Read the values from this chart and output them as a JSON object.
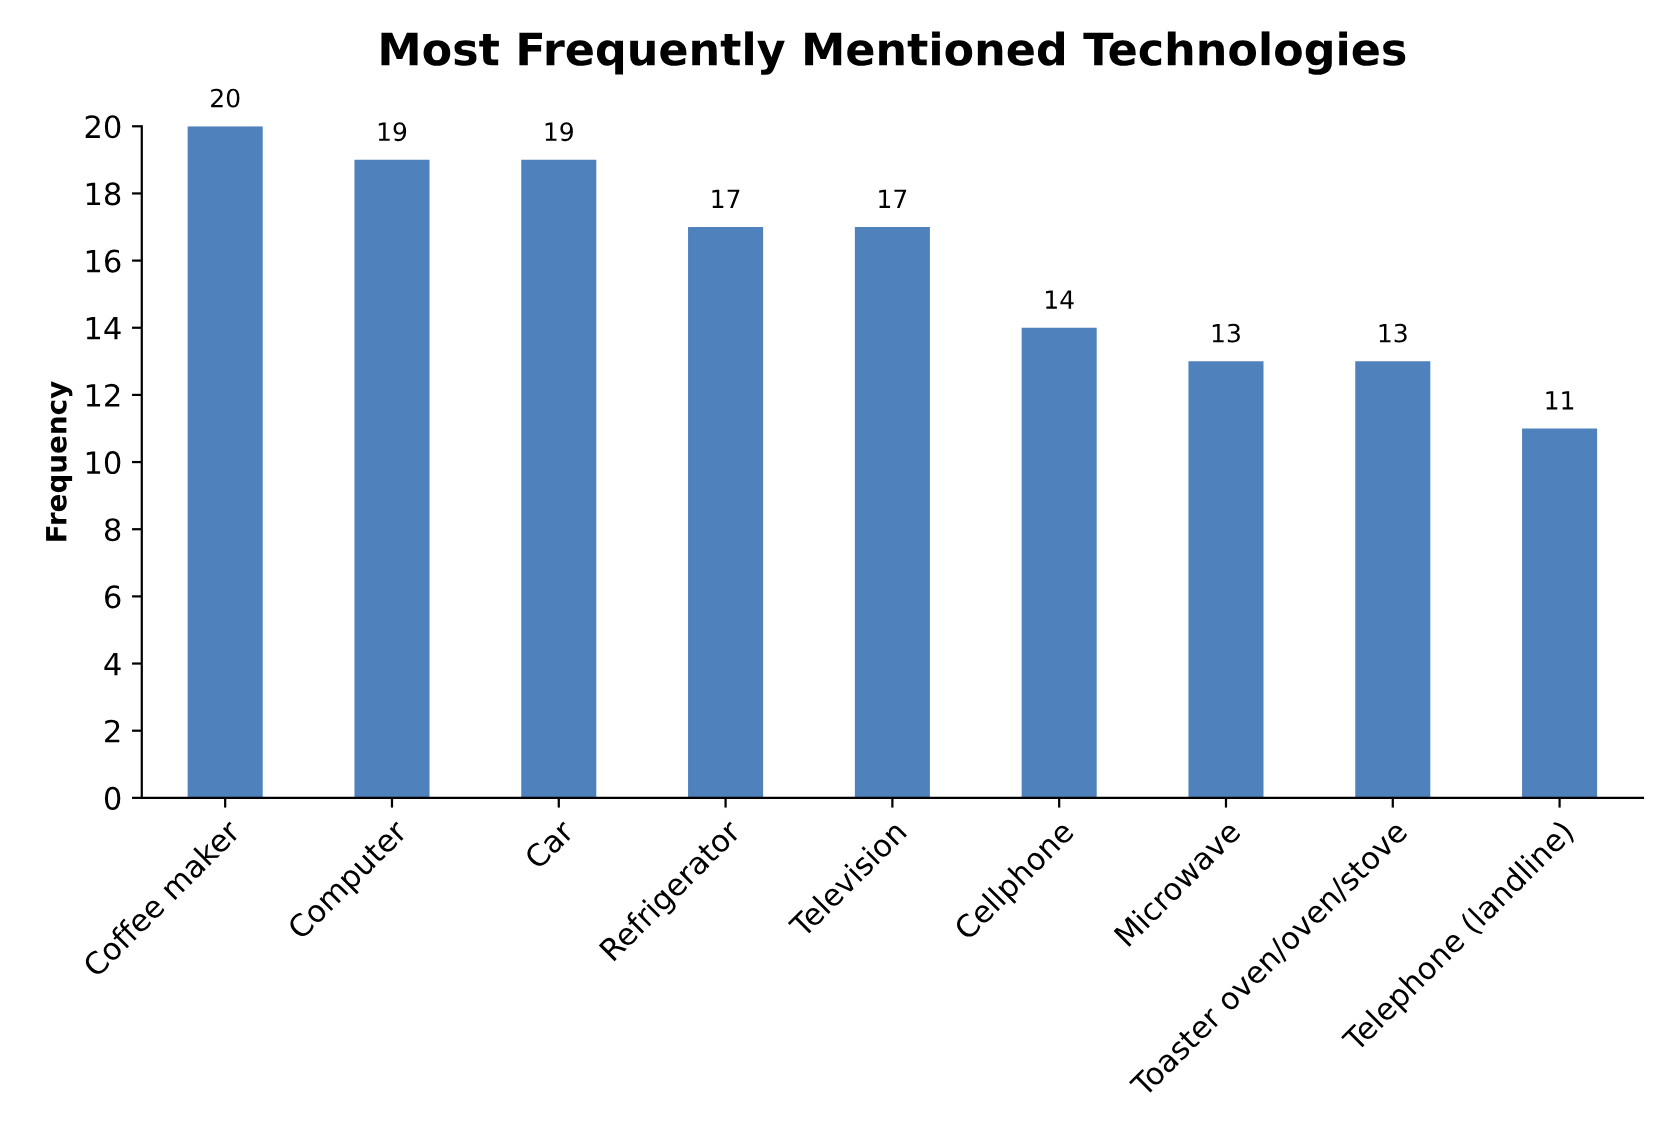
{
  "chart_data": {
    "type": "bar",
    "title": "Most Frequently Mentioned Technologies",
    "ylabel": "Frequency",
    "categories": [
      "Coffee maker",
      "Computer",
      "Car",
      "Refrigerator",
      "Television",
      "Cellphone",
      "Microwave",
      "Toaster oven/oven/stove",
      "Telephone (landline)"
    ],
    "values": [
      20,
      19,
      19,
      17,
      17,
      14,
      13,
      13,
      11
    ],
    "color": "#4f81bd",
    "ylim": [
      0,
      20
    ],
    "yticks": [
      0,
      2,
      4,
      6,
      8,
      10,
      12,
      14,
      16,
      18,
      20
    ],
    "grid": false,
    "data_labels": true
  }
}
